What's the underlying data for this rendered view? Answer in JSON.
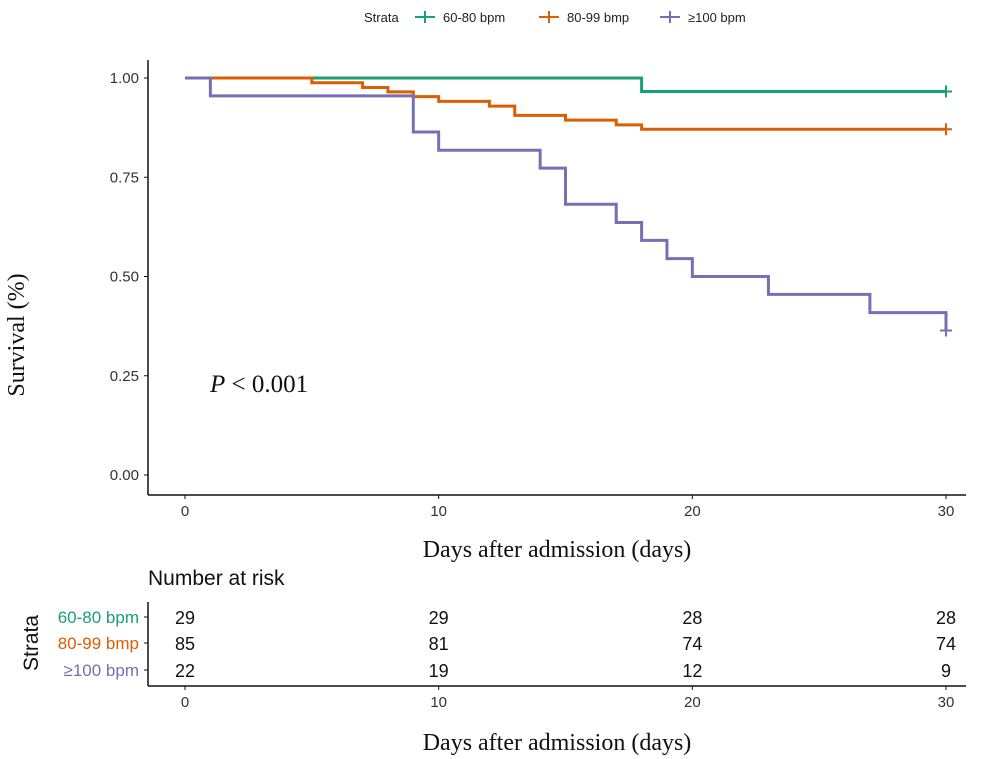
{
  "chart_data": {
    "type": "line",
    "subtype": "kaplan-meier step",
    "xlabel": "Days after admission (days)",
    "ylabel": "Survival (%)",
    "xlim": [
      0,
      30
    ],
    "ylim": [
      0,
      1
    ],
    "x_ticks": [
      0,
      10,
      20,
      30
    ],
    "y_ticks": [
      "0.00",
      "0.25",
      "0.50",
      "0.75",
      "1.00"
    ],
    "grid": false,
    "legend": {
      "title": "Strata",
      "position": "top"
    },
    "annotation": {
      "italic": "P",
      "text": " < 0.001"
    },
    "series": [
      {
        "name": "60-80 bpm",
        "color": "#1b9e77",
        "steps": [
          [
            0,
            1.0
          ],
          [
            18,
            0.966
          ]
        ],
        "censor": [
          [
            30,
            0.966
          ]
        ]
      },
      {
        "name": "80-99 bmp",
        "color": "#d95f02",
        "steps": [
          [
            0,
            1.0
          ],
          [
            5,
            0.988
          ],
          [
            7,
            0.976
          ],
          [
            8,
            0.965
          ],
          [
            9,
            0.953
          ],
          [
            10,
            0.941
          ],
          [
            12,
            0.929
          ],
          [
            13,
            0.906
          ],
          [
            15,
            0.894
          ],
          [
            17,
            0.882
          ],
          [
            18,
            0.871
          ]
        ],
        "censor": [
          [
            30,
            0.871
          ]
        ]
      },
      {
        "name": "≥100 bpm",
        "color": "#7570b3",
        "steps": [
          [
            0,
            1.0
          ],
          [
            1,
            0.955
          ],
          [
            9,
            0.864
          ],
          [
            10,
            0.818
          ],
          [
            14,
            0.773
          ],
          [
            15,
            0.682
          ],
          [
            17,
            0.636
          ],
          [
            18,
            0.591
          ],
          [
            19,
            0.545
          ],
          [
            20,
            0.5
          ],
          [
            23,
            0.455
          ],
          [
            27,
            0.409
          ],
          [
            30,
            0.364
          ]
        ],
        "censor": [
          [
            30,
            0.364
          ]
        ]
      }
    ],
    "risk_table": {
      "title": "Number at risk",
      "ylabel": "Strata",
      "xlabel": "Days after admission (days)",
      "times": [
        0,
        10,
        20,
        30
      ],
      "rows": [
        {
          "label": "60-80 bpm",
          "values": [
            29,
            29,
            28,
            28
          ]
        },
        {
          "label": "80-99 bmp",
          "values": [
            85,
            81,
            74,
            74
          ]
        },
        {
          "label": "≥100 bpm",
          "values": [
            22,
            19,
            12,
            9
          ]
        }
      ]
    }
  }
}
